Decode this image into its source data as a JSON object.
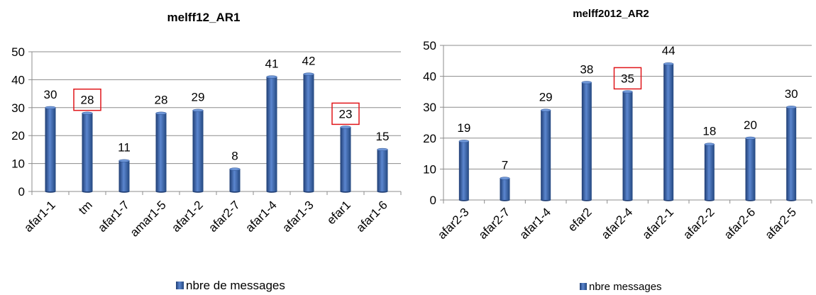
{
  "chart_data": [
    {
      "type": "bar",
      "title": "melff12_AR1",
      "categories": [
        "afar1-1",
        "tm",
        "afar1-7",
        "amar1-5",
        "afar1-2",
        "afar2-7",
        "afar1-4",
        "afar1-3",
        "efar1",
        "afar1-6"
      ],
      "series": [
        {
          "name": "nbre de messages",
          "values": [
            30,
            28,
            11,
            28,
            29,
            8,
            41,
            42,
            23,
            15
          ]
        }
      ],
      "highlighted": [
        "tm",
        "efar1"
      ],
      "ylim": [
        0,
        50
      ],
      "yticks": [
        "0",
        "10",
        "20",
        "30",
        "40",
        "50"
      ],
      "grid": true,
      "legend": "bottom",
      "bar_color": "#2f5597",
      "highlight_color": "#e0161a"
    },
    {
      "type": "bar",
      "title": "melff2012_AR2",
      "categories": [
        "afar2-3",
        "afar2-7",
        "afar1-4",
        "efar2",
        "afar2-4",
        "afar2-1",
        "afar2-2",
        "afar2-6",
        "afar2-5"
      ],
      "series": [
        {
          "name": "nbre messages",
          "values": [
            19,
            7,
            29,
            38,
            35,
            44,
            18,
            20,
            30
          ]
        }
      ],
      "highlighted": [
        "afar2-4"
      ],
      "ylim": [
        0,
        50
      ],
      "yticks": [
        "0",
        "10",
        "20",
        "30",
        "40",
        "50"
      ],
      "grid": true,
      "legend": "bottom",
      "bar_color": "#2f5597",
      "highlight_color": "#e0161a"
    }
  ]
}
